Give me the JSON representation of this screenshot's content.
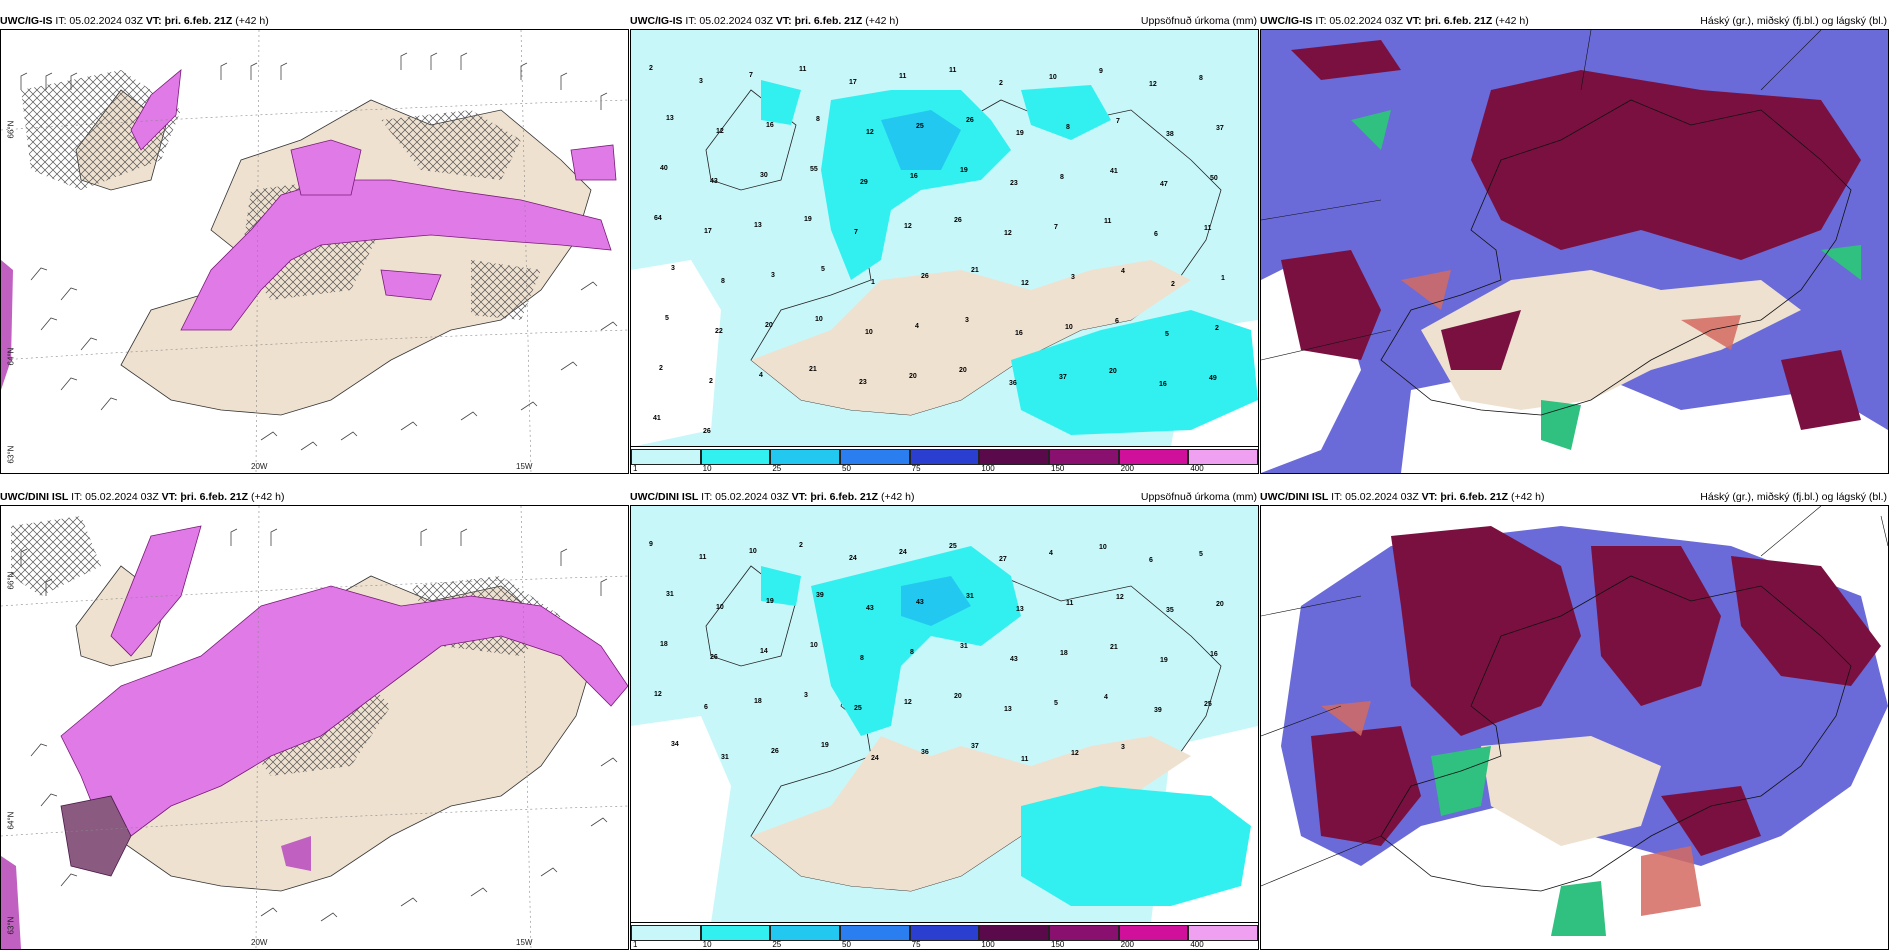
{
  "panels": {
    "r1c1": {
      "model": "UWC/IG-IS",
      "it": "IT: 05.02.2024 03Z",
      "vt_label": "VT:",
      "vt": "þri. 6.feb. 21Z",
      "lead": "(+42 h)",
      "title_right": "",
      "lat1": "66°N",
      "lat2": "64°N",
      "lat3": "63°N",
      "lon1": "20W",
      "lon2": "15W"
    },
    "r1c2": {
      "model": "UWC/IG-IS",
      "it": "IT: 05.02.2024 03Z",
      "vt_label": "VT:",
      "vt": "þri. 6.feb. 21Z",
      "lead": "(+42 h)",
      "title_right": "Uppsöfnuð úrkoma (mm)"
    },
    "r1c3": {
      "model": "UWC/IG-IS",
      "it": "IT: 05.02.2024 03Z",
      "vt_label": "VT:",
      "vt": "þri. 6.feb. 21Z",
      "lead": "(+42 h)",
      "title_right": "Háský (gr.), miðský (fj.bl.) og lágský (bl.)"
    },
    "r2c1": {
      "model": "UWC/DINI ISL",
      "it": "IT: 05.02.2024 03Z",
      "vt_label": "VT:",
      "vt": "þri. 6.feb. 21Z",
      "lead": "(+42 h)",
      "title_right": "",
      "lat1": "66°N",
      "lat2": "64°N",
      "lat3": "63°N",
      "lon1": "20W",
      "lon2": "15W"
    },
    "r2c2": {
      "model": "UWC/DINI ISL",
      "it": "IT: 05.02.2024 03Z",
      "vt_label": "VT:",
      "vt": "þri. 6.feb. 21Z",
      "lead": "(+42 h)",
      "title_right": "Uppsöfnuð úrkoma (mm)"
    },
    "r2c3": {
      "model": "UWC/DINI ISL",
      "it": "IT: 05.02.2024 03Z",
      "vt_label": "VT:",
      "vt": "þri. 6.feb. 21Z",
      "lead": "(+42 h)",
      "title_right": "Háský (gr.), miðský (fj.bl.) og lágský (bl.)"
    }
  },
  "precip_colorbar": {
    "ticks": [
      "1",
      "10",
      "25",
      "50",
      "75",
      "100",
      "150",
      "200",
      "400"
    ],
    "colors": [
      "#c8f7fa",
      "#33f0f0",
      "#22c8f0",
      "#2a7ef0",
      "#2a3fd0",
      "#5a0a4a",
      "#8a1070",
      "#d0109a",
      "#f0a0f0"
    ]
  },
  "row1_precip_labels": [
    "2",
    "3",
    "7",
    "11",
    "17",
    "11",
    "11",
    "2",
    "10",
    "9",
    "12",
    "8",
    "13",
    "12",
    "16",
    "8",
    "12",
    "25",
    "26",
    "19",
    "8",
    "7",
    "38",
    "37",
    "40",
    "43",
    "30",
    "55",
    "29",
    "16",
    "19",
    "23",
    "8",
    "41",
    "47",
    "50",
    "64",
    "17",
    "13",
    "19",
    "7",
    "12",
    "26",
    "12",
    "7",
    "11",
    "6",
    "11",
    "3",
    "8",
    "3",
    "5",
    "1",
    "26",
    "21",
    "12",
    "3",
    "4",
    "2",
    "1",
    "5",
    "22",
    "20",
    "10",
    "10",
    "4",
    "3",
    "16",
    "10",
    "6",
    "5",
    "2",
    "2",
    "2",
    "4",
    "21",
    "23",
    "20",
    "20",
    "36",
    "37",
    "20",
    "16",
    "49",
    "41",
    "26"
  ],
  "row2_precip_labels": [
    "9",
    "11",
    "10",
    "2",
    "24",
    "24",
    "25",
    "27",
    "4",
    "10",
    "6",
    "5",
    "31",
    "10",
    "19",
    "39",
    "43",
    "43",
    "31",
    "13",
    "11",
    "12",
    "35",
    "20",
    "18",
    "26",
    "14",
    "10",
    "8",
    "8",
    "31",
    "43",
    "18",
    "21",
    "19",
    "16",
    "12",
    "6",
    "18",
    "3",
    "25",
    "12",
    "20",
    "13",
    "5",
    "4",
    "39",
    "25",
    "34",
    "31",
    "26",
    "19",
    "24",
    "36",
    "37",
    "11",
    "12",
    "3"
  ]
}
